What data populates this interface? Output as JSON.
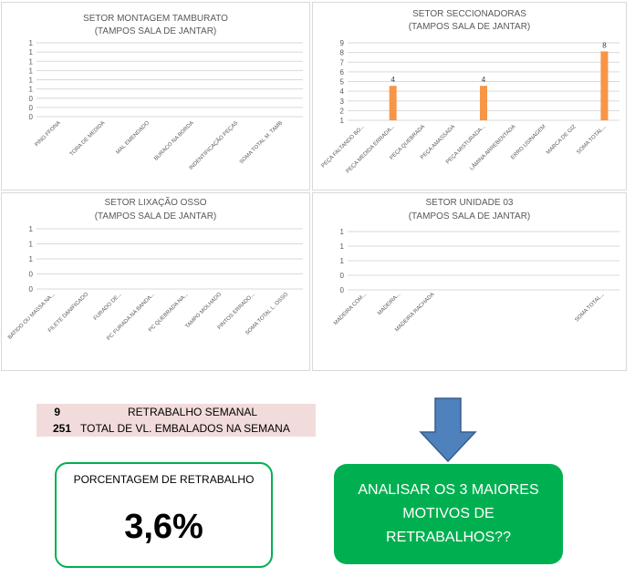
{
  "colors": {
    "bar": "#f79646",
    "grid": "#d9d9d9",
    "axis_text": "#595959",
    "green": "#00b050",
    "table_bg": "#f2dcdb",
    "arrow": "#4f81bd"
  },
  "chart_data": [
    {
      "type": "bar",
      "title": "SETOR  MONTAGEM TAMBURATO",
      "subtitle": "(TAMPOS SALA DE JANTAR)",
      "y_tick_labels": [
        "0",
        "0",
        "0",
        "1",
        "1",
        "1",
        "1",
        "1",
        "1"
      ],
      "categories": [
        "PINO FFONA",
        "TORA DE MEDIDA",
        "MAL EMENDADO",
        "BURACO NA BORDA",
        "INDENTIFICAÇÃO PEÇAS",
        "SOMA TOTAL M. TAMB"
      ],
      "values": [
        0,
        0,
        0,
        0,
        0,
        0
      ],
      "data_labels": [
        "",
        "",
        "",
        "",
        "",
        ""
      ]
    },
    {
      "type": "bar",
      "title": "SETOR SECCIONADORAS",
      "subtitle": "(TAMPOS SALA DE JANTAR)",
      "y_tick_labels": [
        "1",
        "2",
        "3",
        "4",
        "5",
        "6",
        "7",
        "8",
        "9"
      ],
      "ylim": [
        0,
        9
      ],
      "categories": [
        "PEÇA FALTANDO BO...",
        "PEÇA MEDIDA ERRADA...",
        "PEÇA QUEBRADA",
        "PEÇA AMASSADA",
        "PEÇA MISTURADA...",
        "LÂMINA ARREBENTADA",
        "ERRO USINAGEM",
        "MARCA DE GIZ",
        "SOMA TOTAL..."
      ],
      "values": [
        0,
        4,
        0,
        0,
        4,
        0,
        0,
        0,
        8
      ],
      "data_labels": [
        "",
        "4",
        "",
        "",
        "4",
        "",
        "",
        "",
        "8"
      ]
    },
    {
      "type": "bar",
      "title": "SETOR LIXAÇÃO OSSO",
      "subtitle": "(TAMPOS SALA DE JANTAR)",
      "y_tick_labels": [
        "0",
        "0",
        "1",
        "1",
        "1"
      ],
      "categories": [
        "BATIDO OU MASSA NA...",
        "FILETE DANIFICADO",
        "FURADO DE...",
        "PC FURADA NA BANDA...",
        "PC QUEBRADA NA...",
        "TAMPO MOLHADO",
        "PINTOS ERRADO...",
        "SOMA TOTAL L. OSSO"
      ],
      "values": [
        0,
        0,
        0,
        0,
        0,
        0,
        0,
        0
      ],
      "data_labels": [
        "",
        "",
        "",
        "",
        "",
        "",
        "",
        ""
      ]
    },
    {
      "type": "bar",
      "title": "SETOR UNIDADE 03",
      "subtitle": "(TAMPOS SALA DE JANTAR)",
      "y_tick_labels": [
        "0",
        "0",
        "1",
        "1",
        "1"
      ],
      "categories": [
        "MADEIRA COM...",
        "MADEIRA...",
        "MADEIRA RACHADA",
        "",
        "",
        "",
        "",
        "SOMA TOTAL..."
      ],
      "values": [
        0,
        0,
        0,
        0,
        0,
        0,
        0,
        0
      ],
      "data_labels": [
        "",
        "",
        "",
        "",
        "",
        "",
        "",
        ""
      ]
    }
  ],
  "summary_table": {
    "rows": [
      {
        "value": "9",
        "label": "RETRABALHO SEMANAL"
      },
      {
        "value": "251",
        "label": "TOTAL DE VL. EMBALADOS NA SEMANA"
      }
    ]
  },
  "percentage": {
    "label": "PORCENTAGEM DE RETRABALHO",
    "value": "3,6%"
  },
  "action": {
    "text": "ANALISAR OS 3 MAIORES MOTIVOS DE RETRABALHOS??"
  }
}
